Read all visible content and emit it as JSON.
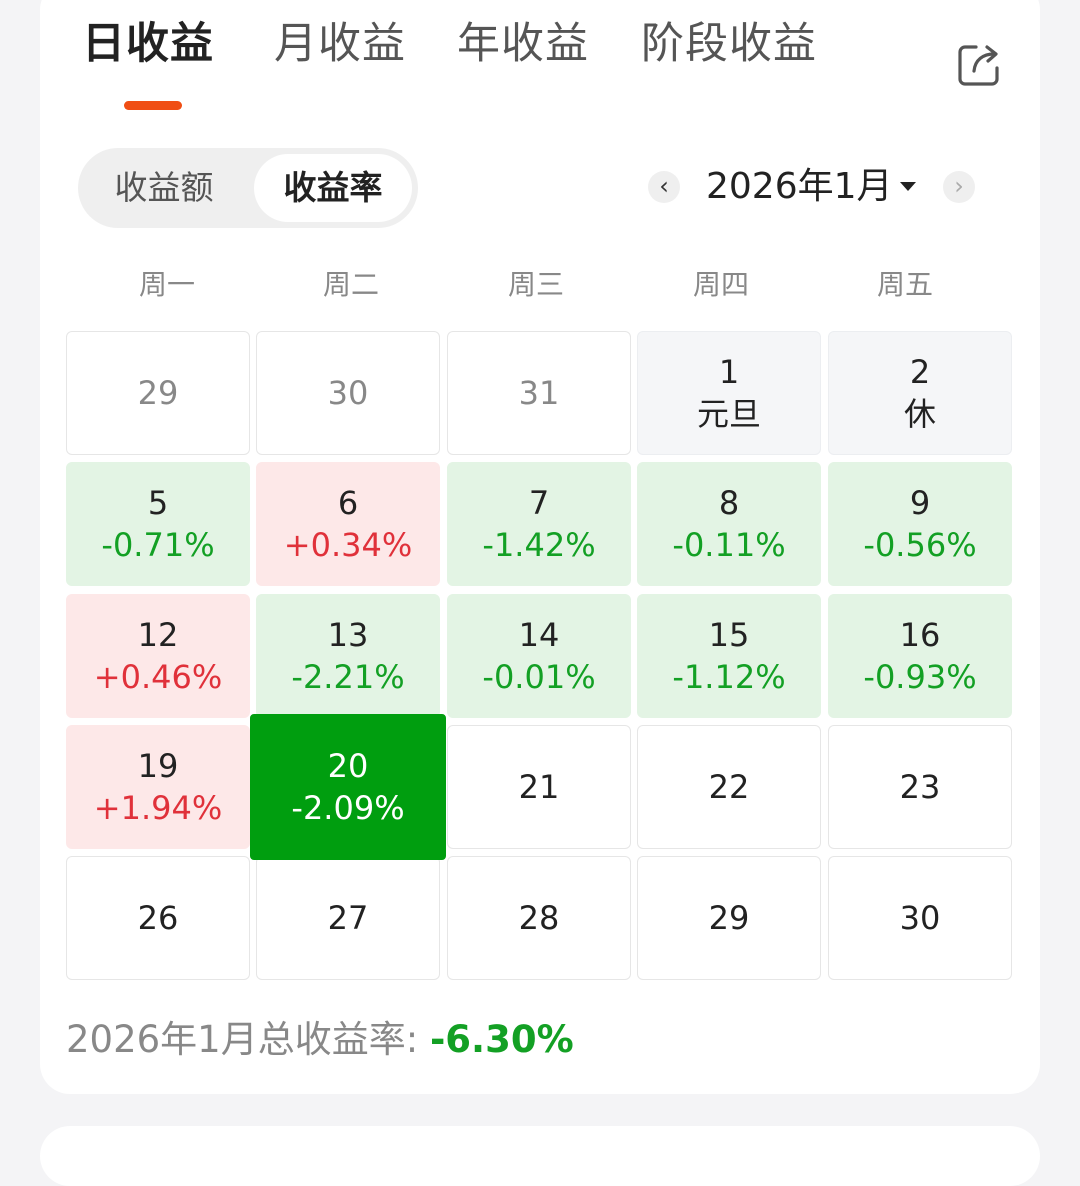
{
  "tabs": [
    {
      "label": "日收益",
      "active": true
    },
    {
      "label": "月收益",
      "active": false
    },
    {
      "label": "年收益",
      "active": false
    },
    {
      "label": "阶段收益",
      "active": false
    }
  ],
  "share_icon": "share-icon",
  "segment": {
    "options": [
      "收益额",
      "收益率"
    ],
    "selected": "收益率"
  },
  "month_picker": {
    "prev": "‹",
    "label": "2026年1月",
    "next": "›"
  },
  "weekdays": [
    "周一",
    "周二",
    "周三",
    "周四",
    "周五"
  ],
  "calendar": {
    "rows": [
      [
        {
          "day": "29",
          "sub": "",
          "state": "past"
        },
        {
          "day": "30",
          "sub": "",
          "state": "past"
        },
        {
          "day": "31",
          "sub": "",
          "state": "past"
        },
        {
          "day": "1",
          "sub": "元旦",
          "state": "holiday"
        },
        {
          "day": "2",
          "sub": "休",
          "state": "holiday"
        }
      ],
      [
        {
          "day": "5",
          "sub": "-0.71%",
          "state": "down"
        },
        {
          "day": "6",
          "sub": "+0.34%",
          "state": "up"
        },
        {
          "day": "7",
          "sub": "-1.42%",
          "state": "down"
        },
        {
          "day": "8",
          "sub": "-0.11%",
          "state": "down"
        },
        {
          "day": "9",
          "sub": "-0.56%",
          "state": "down"
        }
      ],
      [
        {
          "day": "12",
          "sub": "+0.46%",
          "state": "up"
        },
        {
          "day": "13",
          "sub": "-2.21%",
          "state": "down"
        },
        {
          "day": "14",
          "sub": "-0.01%",
          "state": "down"
        },
        {
          "day": "15",
          "sub": "-1.12%",
          "state": "down"
        },
        {
          "day": "16",
          "sub": "-0.93%",
          "state": "down"
        }
      ],
      [
        {
          "day": "19",
          "sub": "+1.94%",
          "state": "up"
        },
        {
          "day": "20",
          "sub": "-2.09%",
          "state": "selected"
        },
        {
          "day": "21",
          "sub": "",
          "state": "future"
        },
        {
          "day": "22",
          "sub": "",
          "state": "future"
        },
        {
          "day": "23",
          "sub": "",
          "state": "future"
        }
      ],
      [
        {
          "day": "26",
          "sub": "",
          "state": "future"
        },
        {
          "day": "27",
          "sub": "",
          "state": "future"
        },
        {
          "day": "28",
          "sub": "",
          "state": "future"
        },
        {
          "day": "29",
          "sub": "",
          "state": "future"
        },
        {
          "day": "30",
          "sub": "",
          "state": "future"
        }
      ]
    ]
  },
  "summary": {
    "label": "2026年1月总收益率: ",
    "value": "-6.30%"
  },
  "colors": {
    "accent": "#f04e14",
    "down": "#13a024",
    "up": "#e0313a",
    "selected": "#009e0f"
  }
}
